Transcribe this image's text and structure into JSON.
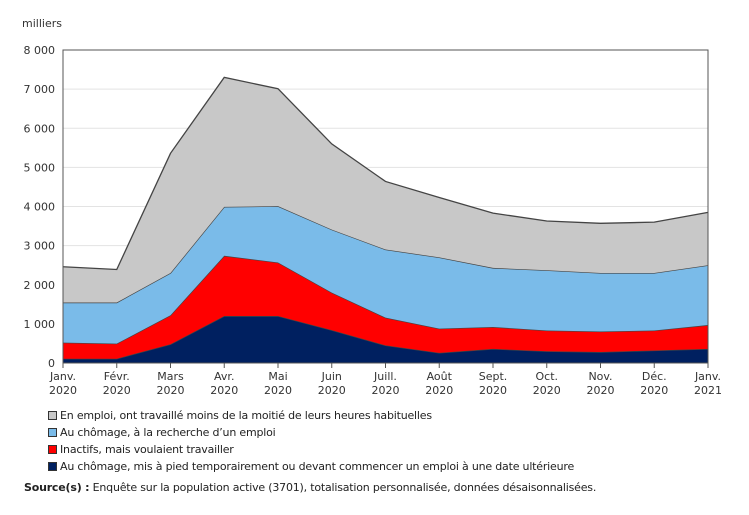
{
  "chart_data": {
    "type": "area",
    "stacked": true,
    "ylabel": "milliers",
    "ylim": [
      0,
      8000
    ],
    "yticks": [
      "0",
      "1 000",
      "2 000",
      "3 000",
      "4 000",
      "5 000",
      "6 000",
      "7 000",
      "8 000"
    ],
    "grid": true,
    "legend_placement": "bottom",
    "categories": [
      [
        "Janv.",
        "2020"
      ],
      [
        "Févr.",
        "2020"
      ],
      [
        "Mars",
        "2020"
      ],
      [
        "Avr.",
        "2020"
      ],
      [
        "Mai",
        "2020"
      ],
      [
        "Juin",
        "2020"
      ],
      [
        "Juill.",
        "2020"
      ],
      [
        "Août",
        "2020"
      ],
      [
        "Sept.",
        "2020"
      ],
      [
        "Oct.",
        "2020"
      ],
      [
        "Nov.",
        "2020"
      ],
      [
        "Déc.",
        "2020"
      ],
      [
        "Janv.",
        "2021"
      ]
    ],
    "series": [
      {
        "name": "Au chômage, mis à pied temporairement ou devant commencer un emploi à une date ultérieure",
        "color": "#002060",
        "values": [
          110,
          110,
          480,
          1200,
          1200,
          840,
          450,
          260,
          360,
          300,
          280,
          320,
          360
        ]
      },
      {
        "name": "Inactifs, mais voulaient travailler",
        "color": "#ff0000",
        "values": [
          410,
          385,
          740,
          1540,
          1370,
          960,
          710,
          620,
          560,
          530,
          525,
          510,
          610
        ]
      },
      {
        "name": "Au chômage, à la recherche d’un emploi",
        "color": "#7abbe9",
        "values": [
          1025,
          1050,
          1080,
          1250,
          1440,
          1610,
          1740,
          1820,
          1510,
          1540,
          1495,
          1470,
          1530
        ]
      },
      {
        "name": "En emploi, ont travaillé moins de la moitié de leurs heures habituelles",
        "color": "#c8c8c8",
        "values": [
          915,
          845,
          3060,
          3310,
          3000,
          2190,
          1740,
          1530,
          1400,
          1260,
          1270,
          1300,
          1350
        ]
      }
    ]
  },
  "source": {
    "label": "Source(s) :",
    "text": "Enquête sur la population active (3701), totalisation personnalisée, données désaisonnalisées."
  }
}
